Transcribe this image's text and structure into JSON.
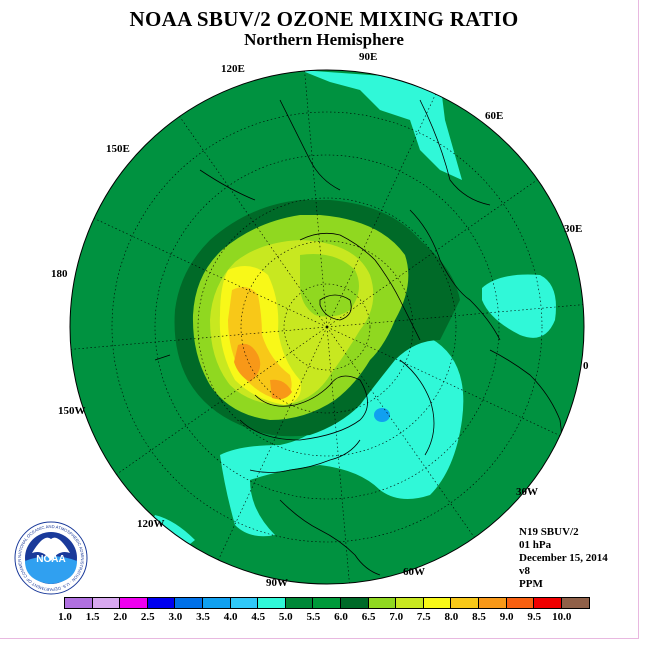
{
  "title": "NOAA SBUV/2 OZONE MIXING RATIO",
  "subtitle": "Northern Hemisphere",
  "longitude_labels": {
    "lon_90e": "90E",
    "lon_60e": "60E",
    "lon_30e": "30E",
    "lon_0": "0",
    "lon_30w": "30W",
    "lon_60w": "60W",
    "lon_90w": "90W",
    "lon_120w": "120W",
    "lon_150w": "150W",
    "lon_180": "180",
    "lon_150e": "150E",
    "lon_120e": "120E"
  },
  "metadata": {
    "satellite": "N19 SBUV/2",
    "level": "01 hPa",
    "date": "December 15, 2014",
    "version": "v8",
    "units": "PPM"
  },
  "logo": {
    "center_text": "NOAA",
    "ring_text": "NATIONAL OCEANIC AND ATMOSPHERIC ADMINISTRATION · U.S. DEPARTMENT OF COMMERCE"
  },
  "colorbar": {
    "ticks": [
      "1.0",
      "1.5",
      "2.0",
      "2.5",
      "3.0",
      "3.5",
      "4.0",
      "4.5",
      "5.0",
      "5.5",
      "6.0",
      "6.5",
      "7.0",
      "7.5",
      "8.0",
      "8.5",
      "9.0",
      "9.5",
      "10.0"
    ],
    "colors": [
      "#b070e0",
      "#d8a8f0",
      "#f000f0",
      "#0000f0",
      "#0070e8",
      "#10a0f0",
      "#30c8f8",
      "#30f8d8",
      "#008838",
      "#009a3a",
      "#006a28",
      "#90d820",
      "#c8e820",
      "#f8f818",
      "#f8c818",
      "#f89818",
      "#f86010",
      "#f00000",
      "#906048"
    ]
  },
  "map_colors": {
    "background": "#009240",
    "dark_green": "#006a28",
    "cyan": "#30f8d8",
    "light_green": "#90d820",
    "yellow_green": "#c8e820",
    "yellow": "#f8f818",
    "orange_yellow": "#f8c818",
    "orange": "#f89818",
    "blue_spot": "#10a0f0"
  }
}
